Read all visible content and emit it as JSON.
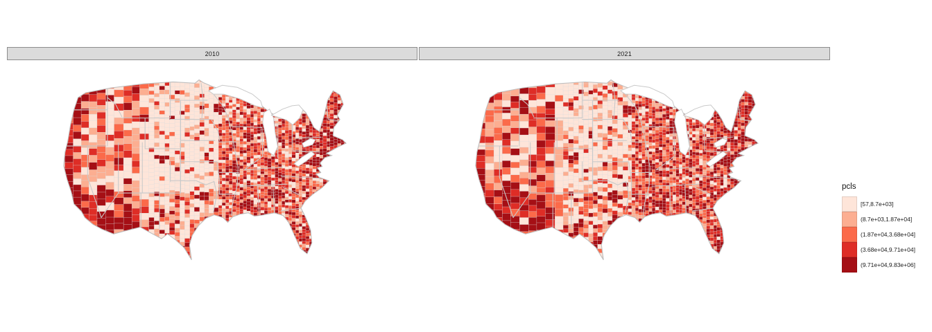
{
  "figure": {
    "background": "#FFFFFF",
    "facets": [
      {
        "label": "2010"
      },
      {
        "label": "2021"
      }
    ],
    "legend": {
      "title": "pcls",
      "items": [
        {
          "label": "[57,8.7e+03]",
          "color": "#FEE5D9"
        },
        {
          "label": "(8.7e+03,1.87e+04]",
          "color": "#FCAE91"
        },
        {
          "label": "(1.87e+04,3.68e+04]",
          "color": "#FB6A4A"
        },
        {
          "label": "(3.68e+04,9.71e+04]",
          "color": "#DE2D26"
        },
        {
          "label": "(9.71e+04,9.83e+06]",
          "color": "#A50F15"
        }
      ]
    },
    "style": {
      "strip_fill": "#DBDBDB",
      "strip_border": "#8C8C8C",
      "strip_text": "#1A1A1A",
      "county_border": "#DCDCDC",
      "state_border": "#C9C9C9",
      "coast_border": "#BEBEBE",
      "water_fill": "#FFFFFF",
      "label_text": "#1A1A1A"
    }
  },
  "chart_data": {
    "type": "choropleth",
    "title": "",
    "variable": "pcls",
    "facets": [
      "2010",
      "2021"
    ],
    "geography": "Contiguous United States counties",
    "legend_title": "pcls",
    "legend_position": "right",
    "classes": [
      {
        "bin": "[57,8.7e+03]",
        "color": "#FEE5D9"
      },
      {
        "bin": "(8.7e+03,1.87e+04]",
        "color": "#FCAE91"
      },
      {
        "bin": "(1.87e+04,3.68e+04]",
        "color": "#FB6A4A"
      },
      {
        "bin": "(3.68e+04,9.71e+04]",
        "color": "#DE2D26"
      },
      {
        "bin": "(9.71e+04,9.83e+06]",
        "color": "#A50F15"
      }
    ],
    "value_range": [
      57,
      9830000
    ],
    "notes": "County values binned into 5 classes; lightest (lowest) counties concentrated in the Great Plains, darkest (highest) along the West Coast, Southwest, Northeast corridor, Florida and metro areas in both facet years."
  }
}
